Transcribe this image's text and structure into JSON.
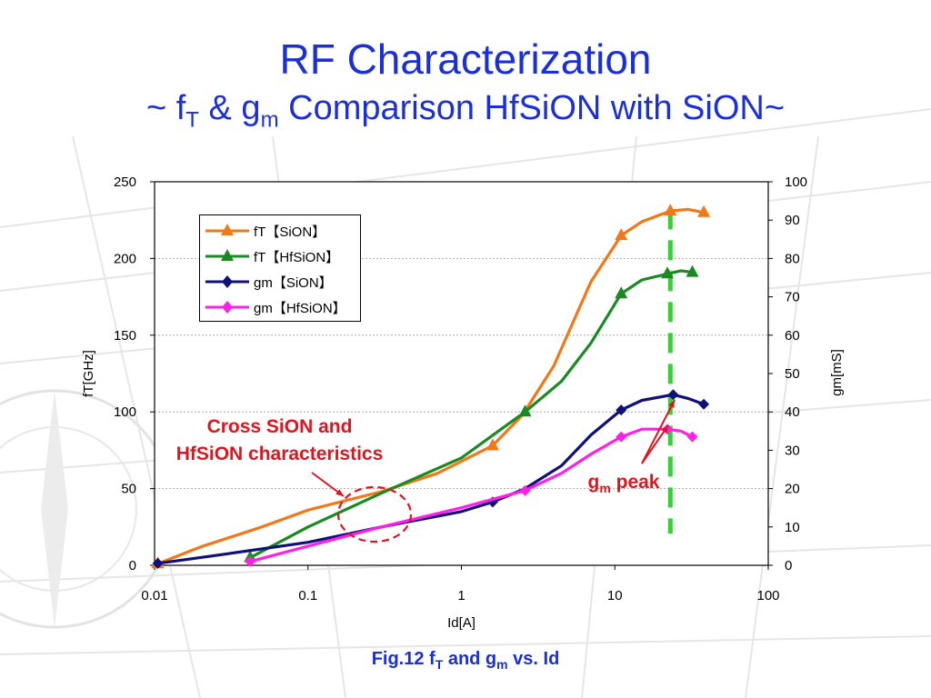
{
  "title": {
    "line1": "RF Characterization",
    "line2_pre": "~ f",
    "line2_sub1": "T",
    "line2_mid": " & g",
    "line2_sub2": "m",
    "line2_post": " Comparison HfSiON with SiON~"
  },
  "caption": {
    "pre": "Fig.12 f",
    "sub1": "T",
    "mid": " and g",
    "sub2": "m",
    "post": " vs. Id"
  },
  "annotations": {
    "cross_line1": "Cross SiON and",
    "cross_line2": "HfSiON characteristics",
    "peak_pre": "g",
    "peak_sub": "m",
    "peak_post": " peak"
  },
  "colors": {
    "ft_sion": "#f07818",
    "ft_hfsion": "#1a8a22",
    "gm_sion": "#10107a",
    "gm_hfsion": "#ff20e8",
    "accent_red": "#e0141e",
    "peak_line": "#22dd22",
    "title_blue": "#1a2fd8"
  },
  "chart_data": {
    "type": "line",
    "xscale": "log",
    "xlim": [
      0.01,
      100
    ],
    "ylim_left": [
      0,
      250
    ],
    "ylim_right": [
      0,
      100
    ],
    "xlabel": "Id[A]",
    "ylabel_left": "fT[GHz]",
    "ylabel_right": "gm[mS]",
    "x_ticks": [
      "0.01",
      "0.1",
      "1",
      "10",
      "100"
    ],
    "y_left_ticks": [
      "0",
      "50",
      "100",
      "150",
      "200",
      "250"
    ],
    "y_right_ticks": [
      "0",
      "10",
      "20",
      "30",
      "40",
      "50",
      "60",
      "70",
      "80",
      "90",
      "100"
    ],
    "grid": "horizontal",
    "legend_position": "top-left",
    "peak_marker_x": 23,
    "series": [
      {
        "name": "fT【SiON】",
        "axis": "left",
        "marker": "triangle",
        "color": "#f07818",
        "points": [
          [
            0.0105,
            1
          ],
          [
            0.02,
            12
          ],
          [
            0.05,
            25
          ],
          [
            0.1,
            36
          ],
          [
            0.3,
            48
          ],
          [
            0.7,
            60
          ],
          [
            1.6,
            78
          ],
          [
            2.5,
            98
          ],
          [
            4,
            130
          ],
          [
            7,
            185
          ],
          [
            11,
            215
          ],
          [
            15,
            224
          ],
          [
            23,
            231
          ],
          [
            30,
            232
          ],
          [
            38,
            230
          ]
        ],
        "markers": [
          [
            0.0105,
            1
          ],
          [
            1.6,
            78
          ],
          [
            11,
            215
          ],
          [
            23,
            231
          ],
          [
            38,
            230
          ]
        ]
      },
      {
        "name": "fT【HfSiON】",
        "axis": "left",
        "marker": "triangle",
        "color": "#1a8a22",
        "points": [
          [
            0.042,
            5
          ],
          [
            0.1,
            25
          ],
          [
            0.3,
            47
          ],
          [
            1,
            70
          ],
          [
            2.6,
            100
          ],
          [
            4.5,
            120
          ],
          [
            7,
            145
          ],
          [
            11,
            177
          ],
          [
            15,
            186
          ],
          [
            22,
            190
          ],
          [
            27,
            192
          ],
          [
            32,
            191
          ]
        ],
        "markers": [
          [
            0.042,
            5
          ],
          [
            2.6,
            100
          ],
          [
            11,
            177
          ],
          [
            22,
            190
          ],
          [
            32,
            191
          ]
        ]
      },
      {
        "name": "gm【SiON】",
        "axis": "right",
        "marker": "diamond",
        "color": "#10107a",
        "points": [
          [
            0.0105,
            0.5
          ],
          [
            0.03,
            3
          ],
          [
            0.1,
            6
          ],
          [
            0.3,
            10
          ],
          [
            1,
            14
          ],
          [
            1.6,
            16.5
          ],
          [
            2.6,
            20
          ],
          [
            4.5,
            26
          ],
          [
            7,
            34
          ],
          [
            11,
            40.5
          ],
          [
            15,
            43
          ],
          [
            24,
            44.5
          ],
          [
            30,
            43.5
          ],
          [
            38,
            42
          ]
        ],
        "markers": [
          [
            0.0105,
            0.5
          ],
          [
            1.6,
            16.5
          ],
          [
            11,
            40.5
          ],
          [
            24,
            44.5
          ],
          [
            38,
            42
          ]
        ]
      },
      {
        "name": "gm【HfSiON】",
        "axis": "right",
        "marker": "diamond",
        "color": "#ff20e8",
        "points": [
          [
            0.042,
            1
          ],
          [
            0.1,
            5
          ],
          [
            0.3,
            10
          ],
          [
            1,
            15
          ],
          [
            2.6,
            19.5
          ],
          [
            4.5,
            24
          ],
          [
            7,
            29
          ],
          [
            11,
            33.5
          ],
          [
            15,
            35.5
          ],
          [
            22,
            35.5
          ],
          [
            27,
            35
          ],
          [
            32,
            33.5
          ]
        ],
        "markers": [
          [
            0.042,
            1
          ],
          [
            2.6,
            19.5
          ],
          [
            11,
            33.5
          ],
          [
            22,
            35.5
          ],
          [
            32,
            33.5
          ]
        ]
      }
    ]
  }
}
